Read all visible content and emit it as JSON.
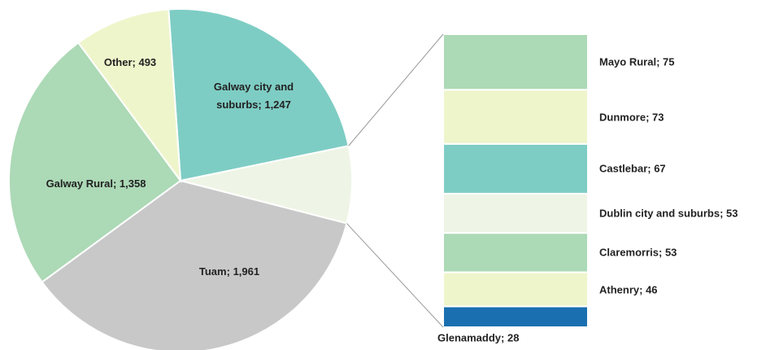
{
  "chart_data": {
    "type": "pie-of-bar",
    "pie": {
      "categories": [
        "Galway city and suburbs",
        null,
        "Tuam",
        "Galway Rural",
        "Other"
      ],
      "values": [
        1247,
        395,
        1961,
        1358,
        493
      ],
      "value_labels": [
        "1,247",
        null,
        "1,961",
        "1,358",
        "493"
      ],
      "colors": [
        "#7ecdc4",
        "#eff5e6",
        "#c8c8c8",
        "#acd9b6",
        "#eff5cb"
      ]
    },
    "bar": {
      "categories": [
        "Mayo Rural",
        "Dunmore",
        "Castlebar",
        "Dublin city and suburbs",
        "Claremorris",
        "Athenry",
        "Glenamaddy"
      ],
      "values": [
        75,
        73,
        67,
        53,
        53,
        46,
        28
      ],
      "colors": [
        "#acd9b6",
        "#eff5cb",
        "#7ecdc4",
        "#eff5e6",
        "#acd9b6",
        "#eff5cb",
        "#1a6fb0"
      ]
    }
  }
}
